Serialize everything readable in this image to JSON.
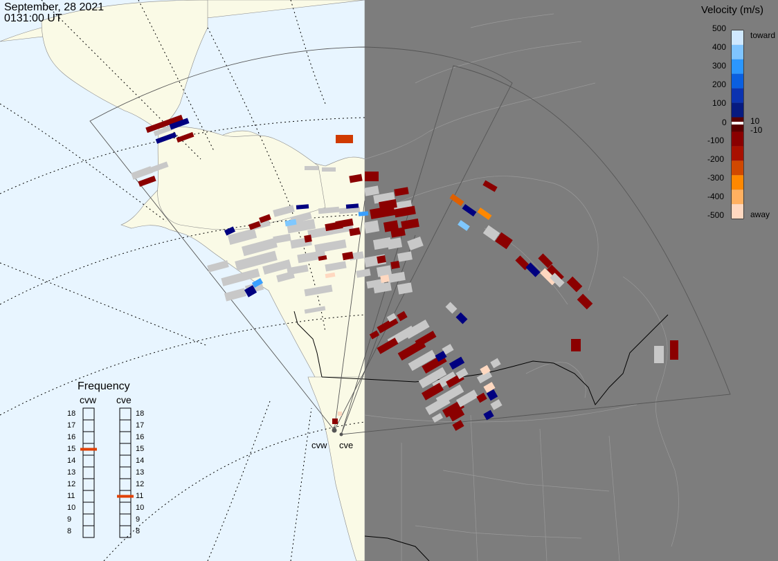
{
  "header": {
    "date": "September, 28 2021",
    "time": "0131:00 UT"
  },
  "velocity_scale": {
    "title": "Velocity (m/s)",
    "ticks": [
      "500",
      "400",
      "300",
      "200",
      "100",
      "10",
      "0",
      "-10",
      "-100",
      "-200",
      "-300",
      "-400",
      "-500"
    ],
    "toward_label": "toward",
    "away_label": "away",
    "colors": [
      "#cfe8ff",
      "#7fc4ff",
      "#2b97ff",
      "#0a5fe0",
      "#0b33b0",
      "#061a80",
      "#5a0000",
      "#8a0000",
      "#a81000",
      "#d04800",
      "#ff8800",
      "#ffb060",
      "#ffd8c0"
    ]
  },
  "frequency": {
    "title": "Frequency",
    "radars": [
      "cvw",
      "cve"
    ],
    "levels": [
      "18",
      "17",
      "16",
      "15",
      "14",
      "13",
      "12",
      "11",
      "10",
      "9",
      "8"
    ],
    "selected": {
      "cvw": 15,
      "cve": 11
    },
    "marker_color": "#e04000"
  },
  "sites": [
    {
      "label": "cvw"
    },
    {
      "label": "cve"
    }
  ],
  "colors": {
    "ocean": "#e8f5ff",
    "land_day": "#fafae6",
    "night": "#7d7d7d",
    "low_velocity": "#c8c8c8",
    "away_dark": "#8b0000",
    "toward_dark": "#000080",
    "toward_light": "#7fc8ff"
  }
}
